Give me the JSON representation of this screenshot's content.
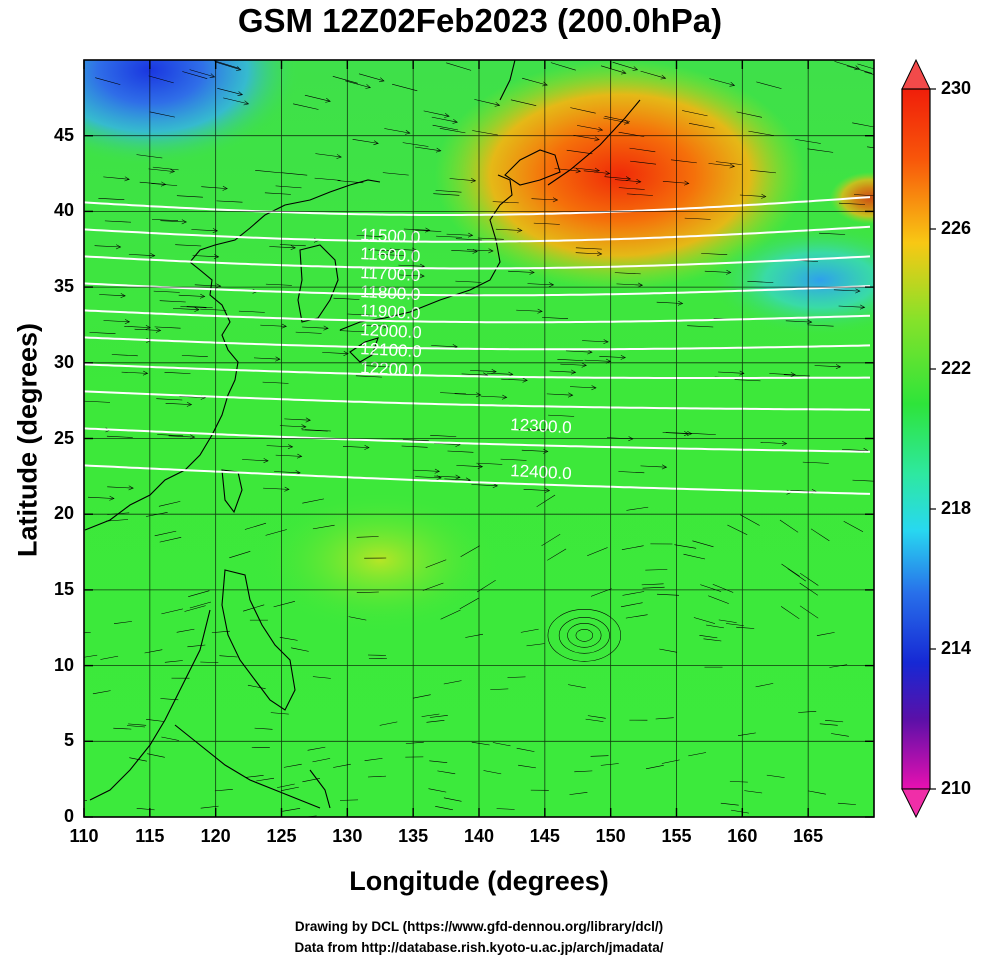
{
  "title": "GSM 12Z02Feb2023 (200.0hPa)",
  "x_axis": {
    "label": "Longitude (degrees)",
    "range": [
      110,
      170
    ],
    "ticks": [
      "110",
      "115",
      "120",
      "125",
      "130",
      "135",
      "140",
      "145",
      "150",
      "155",
      "160",
      "165"
    ]
  },
  "y_axis": {
    "label": "Latitude  (degrees)",
    "range": [
      0,
      50
    ],
    "ticks": [
      "0",
      "5",
      "10",
      "15",
      "20",
      "25",
      "30",
      "35",
      "40",
      "45"
    ]
  },
  "colorbar": {
    "min": 210,
    "max": 230,
    "labels": [
      "230",
      "226",
      "222",
      "218",
      "214",
      "210"
    ]
  },
  "contours": [
    {
      "label": "11500.0"
    },
    {
      "label": "11600.0"
    },
    {
      "label": "11700.0"
    },
    {
      "label": "11800.0"
    },
    {
      "label": "11900.0"
    },
    {
      "label": "12000.0"
    },
    {
      "label": "12100.0"
    },
    {
      "label": "12200.0"
    },
    {
      "label": "12300.0"
    },
    {
      "label": "12400.0"
    }
  ],
  "credits": [
    "Drawing by DCL (https://www.gfd-dennou.org/library/dcl/)",
    "Data from http://database.rish.kyoto-u.ac.jp/arch/jmadata/"
  ]
}
